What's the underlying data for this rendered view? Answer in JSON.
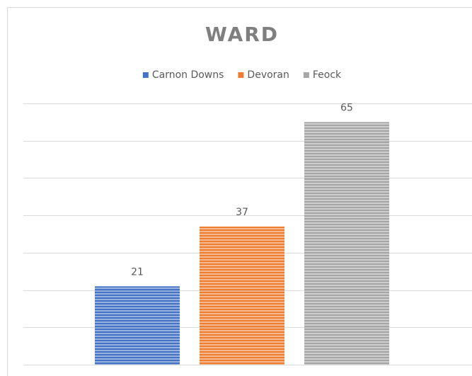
{
  "chart_data": {
    "type": "bar",
    "title": "WARD",
    "series": [
      {
        "name": "Carnon Downs",
        "color": "#4472c4",
        "values": [
          21
        ]
      },
      {
        "name": "Devoran",
        "color": "#ed7d31",
        "values": [
          37
        ]
      },
      {
        "name": "Feock",
        "color": "#a5a5a5",
        "values": [
          65
        ]
      }
    ],
    "ylim": [
      0,
      70
    ],
    "yticks": [
      0,
      10,
      20,
      30,
      40,
      50,
      60,
      70
    ],
    "grid": true,
    "legend": "top"
  }
}
